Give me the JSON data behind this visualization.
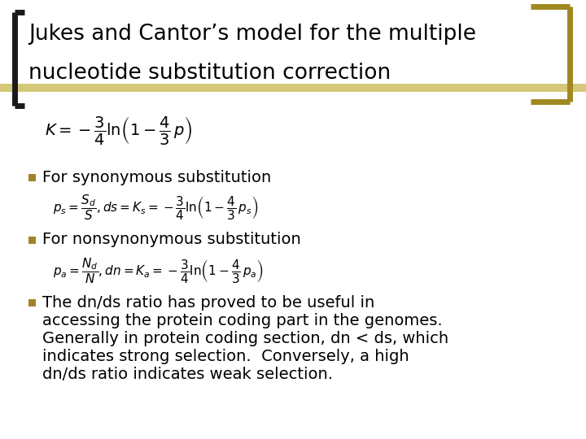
{
  "background_color": "#ffffff",
  "title_line1": "Jukes and Cantor’s model for the multiple",
  "title_line2": "nucleotide substitution correction",
  "title_color": "#000000",
  "title_stripe_color": "#d4c97a",
  "left_bracket_color": "#1a1a1a",
  "right_bracket_color": "#a08820",
  "bullet_color": "#a0832a",
  "bullet1_text": "For synonymous substitution",
  "bullet2_text": "For nonsynonymous substitution",
  "bullet3_lines": [
    "The dn/ds ratio has proved to be useful in",
    "accessing the protein coding part in the genomes.",
    "Generally in protein coding section, dn < ds, which",
    "indicates strong selection.  Conversely, a high",
    "dn/ds ratio indicates weak selection."
  ],
  "text_color": "#000000",
  "font_size_title": 19,
  "font_size_body": 14,
  "font_size_formula": 11
}
